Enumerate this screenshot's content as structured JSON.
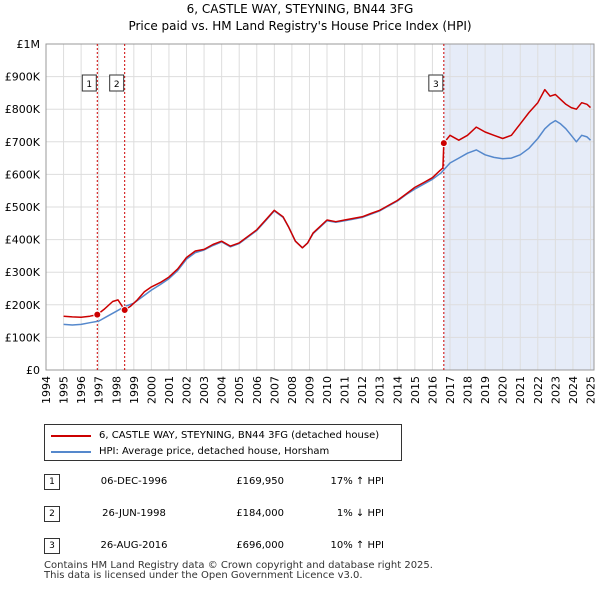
{
  "chart_data": {
    "type": "line",
    "title": "6, CASTLE WAY, STEYNING, BN44 3FG",
    "subtitle": "Price paid vs. HM Land Registry's House Price Index (HPI)",
    "xlim": [
      1994,
      2025.2
    ],
    "ylim": [
      0,
      1000000
    ],
    "x_ticks": [
      1994,
      1995,
      1996,
      1997,
      1998,
      1999,
      2000,
      2001,
      2002,
      2003,
      2004,
      2005,
      2006,
      2007,
      2008,
      2009,
      2010,
      2011,
      2012,
      2013,
      2014,
      2015,
      2016,
      2017,
      2018,
      2019,
      2020,
      2021,
      2022,
      2023,
      2024,
      2025
    ],
    "y_ticks": [
      0,
      100000,
      200000,
      300000,
      400000,
      500000,
      600000,
      700000,
      800000,
      900000,
      1000000
    ],
    "y_tick_labels": [
      "£0",
      "£100K",
      "£200K",
      "£300K",
      "£400K",
      "£500K",
      "£600K",
      "£700K",
      "£800K",
      "£900K",
      "£1M"
    ],
    "shaded_period": [
      2016.65,
      2025.2
    ],
    "series": [
      {
        "name": "6, CASTLE WAY, STEYNING, BN44 3FG (detached house)",
        "color": "#cc0000",
        "x": [
          1995.0,
          1995.5,
          1996.0,
          1996.5,
          1996.92,
          1997.3,
          1997.8,
          1998.1,
          1998.48,
          1998.8,
          1999.2,
          1999.6,
          2000.0,
          2000.5,
          2001.0,
          2001.5,
          2002.0,
          2002.5,
          2003.0,
          2003.5,
          2004.0,
          2004.5,
          2005.0,
          2005.5,
          2006.0,
          2006.5,
          2007.0,
          2007.5,
          2007.8,
          2008.2,
          2008.6,
          2008.9,
          2009.2,
          2009.6,
          2010.0,
          2010.5,
          2011.0,
          2011.5,
          2012.0,
          2012.5,
          2013.0,
          2013.5,
          2014.0,
          2014.5,
          2015.0,
          2015.5,
          2016.0,
          2016.4,
          2016.6,
          2016.65,
          2017.0,
          2017.5,
          2018.0,
          2018.5,
          2019.0,
          2019.5,
          2020.0,
          2020.5,
          2021.0,
          2021.5,
          2022.0,
          2022.4,
          2022.7,
          2023.0,
          2023.3,
          2023.6,
          2023.9,
          2024.2,
          2024.5,
          2024.8,
          2025.0
        ],
        "y": [
          165000,
          163000,
          162000,
          165000,
          169950,
          186000,
          210000,
          215000,
          184000,
          195000,
          215000,
          240000,
          255000,
          268000,
          285000,
          310000,
          345000,
          365000,
          370000,
          385000,
          395000,
          380000,
          390000,
          410000,
          430000,
          460000,
          490000,
          470000,
          440000,
          395000,
          375000,
          390000,
          420000,
          440000,
          460000,
          455000,
          460000,
          465000,
          470000,
          480000,
          490000,
          505000,
          520000,
          540000,
          560000,
          575000,
          590000,
          610000,
          620000,
          696000,
          720000,
          705000,
          720000,
          745000,
          730000,
          720000,
          710000,
          720000,
          755000,
          790000,
          820000,
          860000,
          840000,
          845000,
          830000,
          815000,
          805000,
          800000,
          820000,
          815000,
          805000
        ]
      },
      {
        "name": "HPI: Average price, detached house, Horsham",
        "color": "#5588cc",
        "x": [
          1995.0,
          1995.5,
          1996.0,
          1996.5,
          1997.0,
          1997.5,
          1998.0,
          1998.5,
          1999.0,
          1999.5,
          2000.0,
          2000.5,
          2001.0,
          2001.5,
          2002.0,
          2002.5,
          2003.0,
          2003.5,
          2004.0,
          2004.5,
          2005.0,
          2005.5,
          2006.0,
          2006.5,
          2007.0,
          2007.5,
          2007.8,
          2008.2,
          2008.6,
          2008.9,
          2009.2,
          2009.6,
          2010.0,
          2010.5,
          2011.0,
          2011.5,
          2012.0,
          2012.5,
          2013.0,
          2013.5,
          2014.0,
          2014.5,
          2015.0,
          2015.5,
          2016.0,
          2016.5,
          2017.0,
          2017.5,
          2018.0,
          2018.5,
          2019.0,
          2019.5,
          2020.0,
          2020.5,
          2021.0,
          2021.5,
          2022.0,
          2022.4,
          2022.7,
          2023.0,
          2023.3,
          2023.6,
          2023.9,
          2024.2,
          2024.5,
          2024.8,
          2025.0
        ],
        "y": [
          140000,
          138000,
          140000,
          145000,
          150000,
          165000,
          180000,
          195000,
          205000,
          225000,
          245000,
          262000,
          280000,
          305000,
          340000,
          360000,
          368000,
          382000,
          393000,
          378000,
          388000,
          408000,
          428000,
          458000,
          488000,
          468000,
          440000,
          395000,
          375000,
          390000,
          418000,
          438000,
          458000,
          453000,
          458000,
          463000,
          468000,
          478000,
          488000,
          503000,
          518000,
          538000,
          555000,
          570000,
          585000,
          605000,
          635000,
          650000,
          665000,
          675000,
          660000,
          652000,
          648000,
          650000,
          660000,
          680000,
          710000,
          740000,
          755000,
          765000,
          755000,
          740000,
          720000,
          700000,
          720000,
          715000,
          705000
        ]
      }
    ],
    "sales": [
      {
        "label": "1",
        "x": 1996.92,
        "y": 169950
      },
      {
        "label": "2",
        "x": 1998.48,
        "y": 184000
      },
      {
        "label": "3",
        "x": 2016.65,
        "y": 696000
      }
    ]
  },
  "legend": {
    "property_label": "6, CASTLE WAY, STEYNING, BN44 3FG (detached house)",
    "hpi_label": "HPI: Average price, detached house, Horsham"
  },
  "sales_table": [
    {
      "num": "1",
      "date": "06-DEC-1996",
      "price": "£169,950",
      "hpi": "17% ↑ HPI"
    },
    {
      "num": "2",
      "date": "26-JUN-1998",
      "price": "£184,000",
      "hpi": "1% ↓ HPI"
    },
    {
      "num": "3",
      "date": "26-AUG-2016",
      "price": "£696,000",
      "hpi": "10% ↑ HPI"
    }
  ],
  "footer": {
    "line1": "Contains HM Land Registry data © Crown copyright and database right 2025.",
    "line2": "This data is licensed under the Open Government Licence v3.0."
  },
  "colors": {
    "property": "#cc0000",
    "hpi": "#5588cc",
    "shade": "#e6ecf8",
    "grid": "#dddddd",
    "marker_line": "#cc0000"
  }
}
